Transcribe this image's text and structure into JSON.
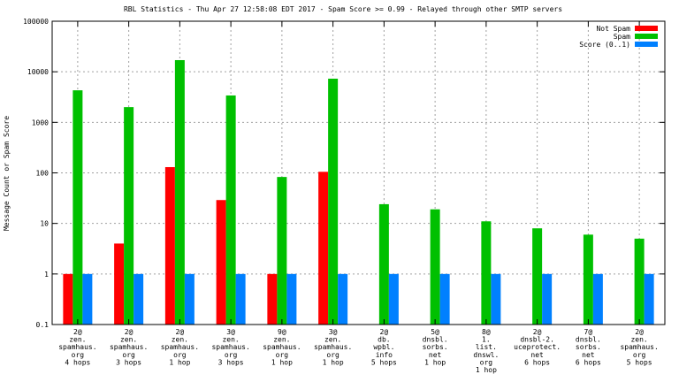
{
  "chart_data": {
    "type": "bar",
    "title": "RBL Statistics - Thu Apr 27 12:58:08 EDT 2017 - Spam Score >= 0.99 - Relayed through other SMTP servers",
    "ylabel": "Message Count or Spam Score",
    "xlabel": "",
    "yscale": "log",
    "ylim": [
      0.1,
      100000
    ],
    "yticks": [
      "0.1",
      "1",
      "10",
      "100",
      "1000",
      "10000",
      "100000"
    ],
    "grid": true,
    "legend_position": "top-right",
    "categories": [
      [
        "2@",
        "zen.",
        "spamhaus.",
        "org",
        "4 hops"
      ],
      [
        "2@",
        "zen.",
        "spamhaus.",
        "org",
        "3 hops"
      ],
      [
        "2@",
        "zen.",
        "spamhaus.",
        "org",
        "1 hop"
      ],
      [
        "3@",
        "zen.",
        "spamhaus.",
        "org",
        "3 hops"
      ],
      [
        "9@",
        "zen.",
        "spamhaus.",
        "org",
        "1 hop"
      ],
      [
        "3@",
        "zen.",
        "spamhaus.",
        "org",
        "1 hop"
      ],
      [
        "2@",
        "db.",
        "wpbl.",
        "info",
        "5 hops"
      ],
      [
        "5@",
        "dnsbl.",
        "sorbs.",
        "net",
        "1 hop"
      ],
      [
        "8@",
        "1.",
        "list.",
        "dnswl.",
        "org",
        "1 hop"
      ],
      [
        "2@",
        "dnsbl-2.",
        "uceprotect.",
        "net",
        "6 hops"
      ],
      [
        "7@",
        "dnsbl.",
        "sorbs.",
        "net",
        "6 hops"
      ],
      [
        "2@",
        "zen.",
        "spamhaus.",
        "org",
        "5 hops"
      ]
    ],
    "series": [
      {
        "name": "Not Spam",
        "color": "#ff0000",
        "values": [
          1,
          4,
          130,
          29,
          1,
          105,
          null,
          null,
          null,
          null,
          null,
          null
        ]
      },
      {
        "name": "Spam",
        "color": "#00c000",
        "values": [
          4300,
          2000,
          17000,
          3400,
          83,
          7300,
          24,
          19,
          11,
          8,
          6,
          5
        ]
      },
      {
        "name": "Score (0..1)",
        "color": "#0080ff",
        "values": [
          1,
          1,
          1,
          1,
          1,
          1,
          1,
          1,
          1,
          1,
          1,
          1
        ]
      }
    ]
  }
}
